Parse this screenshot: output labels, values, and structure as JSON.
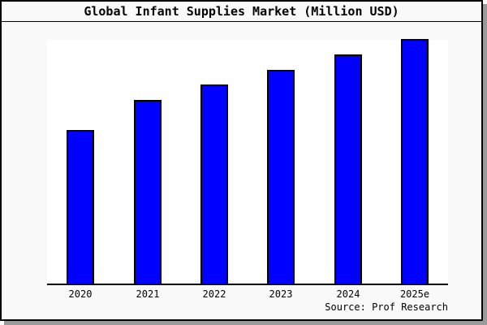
{
  "title": "Global Infant Supplies Market (Million USD)",
  "source": "Source: Prof Research",
  "chart_data": {
    "type": "bar",
    "title": "Global Infant Supplies Market (Million USD)",
    "categories": [
      "2020",
      "2021",
      "2022",
      "2023",
      "2024",
      "2025e"
    ],
    "values": [
      62.3,
      74.7,
      81.0,
      87.0,
      93.3,
      99.7
    ],
    "value_unit": "percent of plot height (no numeric y-axis shown)",
    "xlabel": "",
    "ylabel": "",
    "ylim": [
      0,
      100
    ],
    "grid": false,
    "legend": false,
    "y_axis_visible": false,
    "annotation": "Source: Prof Research"
  },
  "colors": {
    "bar_fill": "#0000ff",
    "bar_border": "#000000",
    "plot_background": "#ffffff",
    "canvas_background": "#f9f9f9",
    "frame_border": "#000000",
    "shadow": "#9a9a9a"
  }
}
